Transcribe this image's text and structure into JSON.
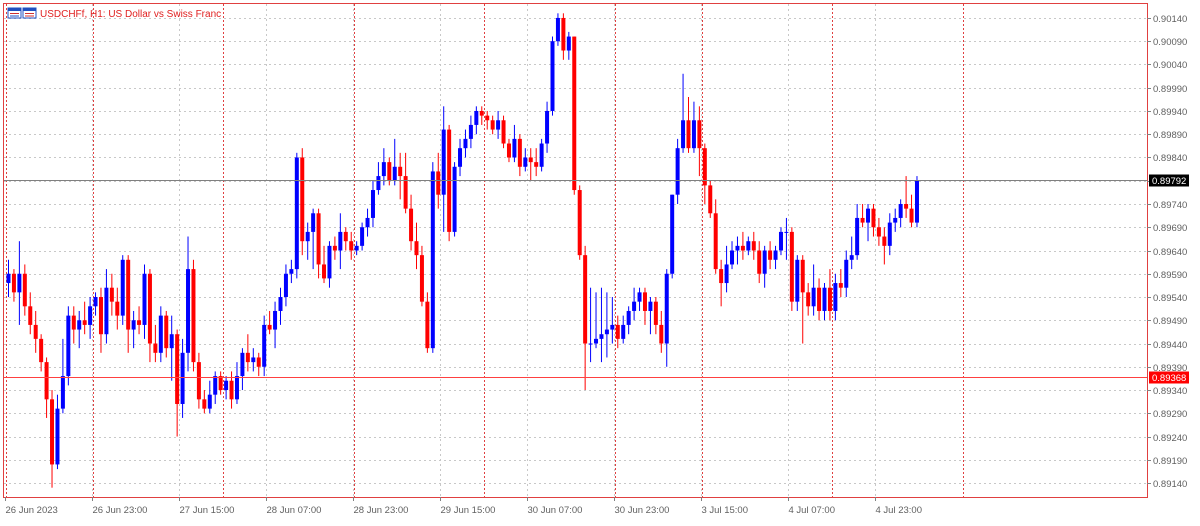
{
  "header": {
    "symbol": "USDCHFf",
    "timeframe": "H1",
    "description": "US Dollar vs Swiss Franc",
    "title": "USDCHFf, H1:  US Dollar vs Swiss Franc",
    "icon": "chart-window-icon"
  },
  "colors": {
    "bull": "#0000ff",
    "bear": "#ff0000",
    "background": "#ffffff",
    "grid": "#c8c8c8",
    "period_separator": "#e04040",
    "axis_text": "#606060",
    "frame": "#e04040",
    "bid_line": "#808080",
    "bid_label_bg": "#000000",
    "level_line": "#ff4040",
    "level_label_bg": "#ff0000"
  },
  "chart_data": {
    "type": "candlestick",
    "title": "USDCHFf, H1:  US Dollar vs Swiss Franc",
    "grid": true,
    "ylim": [
      0.8911,
      0.9017
    ],
    "yticks": [
      "0.90140",
      "0.90090",
      "0.90040",
      "0.89990",
      "0.89940",
      "0.89890",
      "0.89840",
      "0.89790",
      "0.89740",
      "0.89690",
      "0.89640",
      "0.89590",
      "0.89540",
      "0.89490",
      "0.89440",
      "0.89390",
      "0.89340",
      "0.89290",
      "0.89240",
      "0.89190",
      "0.89140"
    ],
    "xticks": [
      {
        "bar": 0,
        "label": "26 Jun 2023"
      },
      {
        "bar": 16,
        "label": "26 Jun 23:00"
      },
      {
        "bar": 32,
        "label": "27 Jun 15:00"
      },
      {
        "bar": 48,
        "label": "28 Jun 07:00"
      },
      {
        "bar": 64,
        "label": "28 Jun 23:00"
      },
      {
        "bar": 80,
        "label": "29 Jun 15:00"
      },
      {
        "bar": 96,
        "label": "30 Jun 07:00"
      },
      {
        "bar": 112,
        "label": "30 Jun 23:00"
      },
      {
        "bar": 128,
        "label": "3 Jul 15:00"
      },
      {
        "bar": 144,
        "label": "4 Jul 07:00"
      },
      {
        "bar": 160,
        "label": "4 Jul 23:00"
      }
    ],
    "separators": [
      0,
      16,
      40,
      64,
      88,
      112,
      128,
      152,
      176
    ],
    "bid": {
      "value": 0.89792,
      "label": "0.89792"
    },
    "level": {
      "value": 0.89368,
      "label": "0.89368"
    },
    "candles": [
      {
        "o": 0.8957,
        "h": 0.8962,
        "l": 0.8954,
        "c": 0.8959
      },
      {
        "o": 0.8959,
        "h": 0.896,
        "l": 0.8953,
        "c": 0.8955
      },
      {
        "o": 0.8955,
        "h": 0.8966,
        "l": 0.8948,
        "c": 0.8959
      },
      {
        "o": 0.8959,
        "h": 0.8961,
        "l": 0.895,
        "c": 0.8952
      },
      {
        "o": 0.8952,
        "h": 0.8955,
        "l": 0.8946,
        "c": 0.8948
      },
      {
        "o": 0.8948,
        "h": 0.8951,
        "l": 0.8942,
        "c": 0.8945
      },
      {
        "o": 0.8945,
        "h": 0.8946,
        "l": 0.8938,
        "c": 0.894
      },
      {
        "o": 0.894,
        "h": 0.8941,
        "l": 0.8928,
        "c": 0.8932
      },
      {
        "o": 0.8932,
        "h": 0.8934,
        "l": 0.8913,
        "c": 0.8918
      },
      {
        "o": 0.8918,
        "h": 0.8933,
        "l": 0.8917,
        "c": 0.893
      },
      {
        "o": 0.893,
        "h": 0.8945,
        "l": 0.8929,
        "c": 0.8937
      },
      {
        "o": 0.8937,
        "h": 0.8952,
        "l": 0.8935,
        "c": 0.895
      },
      {
        "o": 0.895,
        "h": 0.8952,
        "l": 0.8944,
        "c": 0.8947
      },
      {
        "o": 0.8947,
        "h": 0.8951,
        "l": 0.8943,
        "c": 0.8949
      },
      {
        "o": 0.8949,
        "h": 0.8953,
        "l": 0.8946,
        "c": 0.8948
      },
      {
        "o": 0.8948,
        "h": 0.8954,
        "l": 0.8945,
        "c": 0.8952
      },
      {
        "o": 0.8952,
        "h": 0.8955,
        "l": 0.895,
        "c": 0.8954
      },
      {
        "o": 0.8954,
        "h": 0.8956,
        "l": 0.8942,
        "c": 0.8946
      },
      {
        "o": 0.8946,
        "h": 0.896,
        "l": 0.8944,
        "c": 0.8956
      },
      {
        "o": 0.8956,
        "h": 0.8959,
        "l": 0.895,
        "c": 0.8953
      },
      {
        "o": 0.8953,
        "h": 0.8956,
        "l": 0.8947,
        "c": 0.895
      },
      {
        "o": 0.895,
        "h": 0.8963,
        "l": 0.8948,
        "c": 0.8962
      },
      {
        "o": 0.8962,
        "h": 0.8963,
        "l": 0.8942,
        "c": 0.8947
      },
      {
        "o": 0.8947,
        "h": 0.8951,
        "l": 0.8943,
        "c": 0.8949
      },
      {
        "o": 0.8949,
        "h": 0.8952,
        "l": 0.8946,
        "c": 0.8948
      },
      {
        "o": 0.8948,
        "h": 0.8961,
        "l": 0.8945,
        "c": 0.8959
      },
      {
        "o": 0.8959,
        "h": 0.896,
        "l": 0.894,
        "c": 0.8944
      },
      {
        "o": 0.8944,
        "h": 0.8948,
        "l": 0.894,
        "c": 0.8942
      },
      {
        "o": 0.8942,
        "h": 0.8952,
        "l": 0.894,
        "c": 0.895
      },
      {
        "o": 0.895,
        "h": 0.8951,
        "l": 0.8941,
        "c": 0.8943
      },
      {
        "o": 0.8943,
        "h": 0.895,
        "l": 0.8936,
        "c": 0.8946
      },
      {
        "o": 0.8946,
        "h": 0.8947,
        "l": 0.8924,
        "c": 0.8931
      },
      {
        "o": 0.8931,
        "h": 0.8945,
        "l": 0.8928,
        "c": 0.8942
      },
      {
        "o": 0.8942,
        "h": 0.8967,
        "l": 0.8938,
        "c": 0.896
      },
      {
        "o": 0.896,
        "h": 0.8962,
        "l": 0.8938,
        "c": 0.894
      },
      {
        "o": 0.894,
        "h": 0.8942,
        "l": 0.893,
        "c": 0.8932
      },
      {
        "o": 0.8932,
        "h": 0.8934,
        "l": 0.8929,
        "c": 0.893
      },
      {
        "o": 0.893,
        "h": 0.8936,
        "l": 0.8929,
        "c": 0.8933
      },
      {
        "o": 0.8933,
        "h": 0.8938,
        "l": 0.8931,
        "c": 0.8937
      },
      {
        "o": 0.8937,
        "h": 0.8938,
        "l": 0.8933,
        "c": 0.8934
      },
      {
        "o": 0.8934,
        "h": 0.8937,
        "l": 0.8932,
        "c": 0.8936
      },
      {
        "o": 0.8936,
        "h": 0.8938,
        "l": 0.893,
        "c": 0.8932
      },
      {
        "o": 0.8932,
        "h": 0.894,
        "l": 0.8931,
        "c": 0.8937
      },
      {
        "o": 0.8937,
        "h": 0.8943,
        "l": 0.8934,
        "c": 0.8942
      },
      {
        "o": 0.8942,
        "h": 0.8946,
        "l": 0.8938,
        "c": 0.894
      },
      {
        "o": 0.894,
        "h": 0.8943,
        "l": 0.8938,
        "c": 0.8941
      },
      {
        "o": 0.8941,
        "h": 0.8942,
        "l": 0.8937,
        "c": 0.8939
      },
      {
        "o": 0.8939,
        "h": 0.895,
        "l": 0.8937,
        "c": 0.8948
      },
      {
        "o": 0.8948,
        "h": 0.8951,
        "l": 0.8946,
        "c": 0.8947
      },
      {
        "o": 0.8947,
        "h": 0.8953,
        "l": 0.8943,
        "c": 0.8951
      },
      {
        "o": 0.8951,
        "h": 0.8956,
        "l": 0.8948,
        "c": 0.8954
      },
      {
        "o": 0.8954,
        "h": 0.8961,
        "l": 0.8952,
        "c": 0.8959
      },
      {
        "o": 0.8959,
        "h": 0.8962,
        "l": 0.8957,
        "c": 0.896
      },
      {
        "o": 0.896,
        "h": 0.8985,
        "l": 0.8958,
        "c": 0.8984
      },
      {
        "o": 0.8984,
        "h": 0.8986,
        "l": 0.8963,
        "c": 0.8966
      },
      {
        "o": 0.8966,
        "h": 0.897,
        "l": 0.8962,
        "c": 0.8968
      },
      {
        "o": 0.8968,
        "h": 0.8973,
        "l": 0.896,
        "c": 0.8972
      },
      {
        "o": 0.8972,
        "h": 0.8973,
        "l": 0.8958,
        "c": 0.8961
      },
      {
        "o": 0.8961,
        "h": 0.8965,
        "l": 0.8957,
        "c": 0.8958
      },
      {
        "o": 0.8958,
        "h": 0.8966,
        "l": 0.8956,
        "c": 0.8965
      },
      {
        "o": 0.8965,
        "h": 0.8967,
        "l": 0.8962,
        "c": 0.8964
      },
      {
        "o": 0.8964,
        "h": 0.8972,
        "l": 0.896,
        "c": 0.8968
      },
      {
        "o": 0.8968,
        "h": 0.8969,
        "l": 0.8964,
        "c": 0.8966
      },
      {
        "o": 0.8966,
        "h": 0.8968,
        "l": 0.8962,
        "c": 0.8964
      },
      {
        "o": 0.8964,
        "h": 0.8966,
        "l": 0.8963,
        "c": 0.8965
      },
      {
        "o": 0.8965,
        "h": 0.897,
        "l": 0.8964,
        "c": 0.8969
      },
      {
        "o": 0.8969,
        "h": 0.8973,
        "l": 0.8967,
        "c": 0.8971
      },
      {
        "o": 0.8971,
        "h": 0.8979,
        "l": 0.8969,
        "c": 0.8977
      },
      {
        "o": 0.8977,
        "h": 0.8983,
        "l": 0.8976,
        "c": 0.898
      },
      {
        "o": 0.898,
        "h": 0.8986,
        "l": 0.8978,
        "c": 0.8983
      },
      {
        "o": 0.8983,
        "h": 0.8984,
        "l": 0.8978,
        "c": 0.8979
      },
      {
        "o": 0.8979,
        "h": 0.8988,
        "l": 0.8978,
        "c": 0.8982
      },
      {
        "o": 0.8982,
        "h": 0.8985,
        "l": 0.8975,
        "c": 0.898
      },
      {
        "o": 0.898,
        "h": 0.8985,
        "l": 0.8972,
        "c": 0.8973
      },
      {
        "o": 0.8973,
        "h": 0.8976,
        "l": 0.8964,
        "c": 0.8966
      },
      {
        "o": 0.8966,
        "h": 0.897,
        "l": 0.896,
        "c": 0.8963
      },
      {
        "o": 0.8963,
        "h": 0.8965,
        "l": 0.8952,
        "c": 0.8953
      },
      {
        "o": 0.8953,
        "h": 0.8955,
        "l": 0.8942,
        "c": 0.8943
      },
      {
        "o": 0.8943,
        "h": 0.8983,
        "l": 0.8942,
        "c": 0.8981
      },
      {
        "o": 0.8981,
        "h": 0.8985,
        "l": 0.8973,
        "c": 0.8976
      },
      {
        "o": 0.8976,
        "h": 0.8995,
        "l": 0.8968,
        "c": 0.899
      },
      {
        "o": 0.899,
        "h": 0.8991,
        "l": 0.8966,
        "c": 0.8968
      },
      {
        "o": 0.8968,
        "h": 0.8983,
        "l": 0.8967,
        "c": 0.8982
      },
      {
        "o": 0.8982,
        "h": 0.8988,
        "l": 0.898,
        "c": 0.8986
      },
      {
        "o": 0.8986,
        "h": 0.899,
        "l": 0.8984,
        "c": 0.8988
      },
      {
        "o": 0.8988,
        "h": 0.8993,
        "l": 0.8986,
        "c": 0.8991
      },
      {
        "o": 0.8991,
        "h": 0.8995,
        "l": 0.8989,
        "c": 0.8994
      },
      {
        "o": 0.8994,
        "h": 0.8995,
        "l": 0.8991,
        "c": 0.8993
      },
      {
        "o": 0.8993,
        "h": 0.8994,
        "l": 0.899,
        "c": 0.8992
      },
      {
        "o": 0.8992,
        "h": 0.8993,
        "l": 0.8989,
        "c": 0.899
      },
      {
        "o": 0.899,
        "h": 0.8994,
        "l": 0.8988,
        "c": 0.8992
      },
      {
        "o": 0.8992,
        "h": 0.8993,
        "l": 0.8986,
        "c": 0.8987
      },
      {
        "o": 0.8987,
        "h": 0.8988,
        "l": 0.8983,
        "c": 0.8984
      },
      {
        "o": 0.8984,
        "h": 0.8991,
        "l": 0.8983,
        "c": 0.8988
      },
      {
        "o": 0.8988,
        "h": 0.8989,
        "l": 0.898,
        "c": 0.8982
      },
      {
        "o": 0.8982,
        "h": 0.8986,
        "l": 0.8981,
        "c": 0.8984
      },
      {
        "o": 0.8984,
        "h": 0.8986,
        "l": 0.8979,
        "c": 0.8983
      },
      {
        "o": 0.8983,
        "h": 0.8986,
        "l": 0.898,
        "c": 0.8982
      },
      {
        "o": 0.8982,
        "h": 0.8988,
        "l": 0.8981,
        "c": 0.8987
      },
      {
        "o": 0.8987,
        "h": 0.8996,
        "l": 0.8985,
        "c": 0.8994
      },
      {
        "o": 0.8994,
        "h": 0.901,
        "l": 0.8993,
        "c": 0.9009
      },
      {
        "o": 0.9009,
        "h": 0.9015,
        "l": 0.9008,
        "c": 0.9014
      },
      {
        "o": 0.9014,
        "h": 0.9015,
        "l": 0.9005,
        "c": 0.9007
      },
      {
        "o": 0.9007,
        "h": 0.9011,
        "l": 0.9005,
        "c": 0.901
      },
      {
        "o": 0.901,
        "h": 0.901,
        "l": 0.8976,
        "c": 0.8977
      },
      {
        "o": 0.8977,
        "h": 0.8978,
        "l": 0.8962,
        "c": 0.8963
      },
      {
        "o": 0.8963,
        "h": 0.8965,
        "l": 0.8934,
        "c": 0.8944
      },
      {
        "o": 0.8944,
        "h": 0.8956,
        "l": 0.894,
        "c": 0.8944
      },
      {
        "o": 0.8944,
        "h": 0.8955,
        "l": 0.8943,
        "c": 0.8945
      },
      {
        "o": 0.8945,
        "h": 0.8956,
        "l": 0.894,
        "c": 0.8946
      },
      {
        "o": 0.8946,
        "h": 0.8955,
        "l": 0.8941,
        "c": 0.8947
      },
      {
        "o": 0.8947,
        "h": 0.8954,
        "l": 0.8944,
        "c": 0.8948
      },
      {
        "o": 0.8948,
        "h": 0.895,
        "l": 0.8943,
        "c": 0.8945
      },
      {
        "o": 0.8945,
        "h": 0.895,
        "l": 0.8944,
        "c": 0.8948
      },
      {
        "o": 0.8948,
        "h": 0.8952,
        "l": 0.8946,
        "c": 0.8951
      },
      {
        "o": 0.8951,
        "h": 0.8956,
        "l": 0.8949,
        "c": 0.8953
      },
      {
        "o": 0.8953,
        "h": 0.8956,
        "l": 0.8951,
        "c": 0.8955
      },
      {
        "o": 0.8955,
        "h": 0.8956,
        "l": 0.8948,
        "c": 0.8951
      },
      {
        "o": 0.8951,
        "h": 0.8954,
        "l": 0.8946,
        "c": 0.8953
      },
      {
        "o": 0.8953,
        "h": 0.8954,
        "l": 0.8946,
        "c": 0.8948
      },
      {
        "o": 0.8948,
        "h": 0.8951,
        "l": 0.8942,
        "c": 0.8944
      },
      {
        "o": 0.8944,
        "h": 0.896,
        "l": 0.8939,
        "c": 0.8959
      },
      {
        "o": 0.8959,
        "h": 0.8976,
        "l": 0.8958,
        "c": 0.8976
      },
      {
        "o": 0.8976,
        "h": 0.8988,
        "l": 0.8974,
        "c": 0.8986
      },
      {
        "o": 0.8986,
        "h": 0.9002,
        "l": 0.8985,
        "c": 0.8992
      },
      {
        "o": 0.8992,
        "h": 0.8997,
        "l": 0.8985,
        "c": 0.8986
      },
      {
        "o": 0.8986,
        "h": 0.8996,
        "l": 0.8985,
        "c": 0.8992
      },
      {
        "o": 0.8992,
        "h": 0.8995,
        "l": 0.898,
        "c": 0.8986
      },
      {
        "o": 0.8986,
        "h": 0.8987,
        "l": 0.8974,
        "c": 0.8978
      },
      {
        "o": 0.8978,
        "h": 0.8979,
        "l": 0.8971,
        "c": 0.8972
      },
      {
        "o": 0.8972,
        "h": 0.8975,
        "l": 0.8959,
        "c": 0.896
      },
      {
        "o": 0.896,
        "h": 0.8962,
        "l": 0.8952,
        "c": 0.8957
      },
      {
        "o": 0.8957,
        "h": 0.8965,
        "l": 0.8955,
        "c": 0.8961
      },
      {
        "o": 0.8961,
        "h": 0.8966,
        "l": 0.896,
        "c": 0.8964
      },
      {
        "o": 0.8964,
        "h": 0.8967,
        "l": 0.8961,
        "c": 0.8965
      },
      {
        "o": 0.8965,
        "h": 0.8968,
        "l": 0.8962,
        "c": 0.8964
      },
      {
        "o": 0.8964,
        "h": 0.8967,
        "l": 0.8963,
        "c": 0.8966
      },
      {
        "o": 0.8966,
        "h": 0.8968,
        "l": 0.8962,
        "c": 0.8964
      },
      {
        "o": 0.8964,
        "h": 0.8966,
        "l": 0.8957,
        "c": 0.8959
      },
      {
        "o": 0.8959,
        "h": 0.8965,
        "l": 0.8956,
        "c": 0.8964
      },
      {
        "o": 0.8964,
        "h": 0.8966,
        "l": 0.896,
        "c": 0.8962
      },
      {
        "o": 0.8962,
        "h": 0.8965,
        "l": 0.896,
        "c": 0.8964
      },
      {
        "o": 0.8964,
        "h": 0.8969,
        "l": 0.8963,
        "c": 0.8968
      },
      {
        "o": 0.8968,
        "h": 0.8971,
        "l": 0.8962,
        "c": 0.8968
      },
      {
        "o": 0.8968,
        "h": 0.8969,
        "l": 0.8951,
        "c": 0.8953
      },
      {
        "o": 0.8953,
        "h": 0.8963,
        "l": 0.8951,
        "c": 0.8962
      },
      {
        "o": 0.8962,
        "h": 0.8963,
        "l": 0.8944,
        "c": 0.8955
      },
      {
        "o": 0.8955,
        "h": 0.8957,
        "l": 0.895,
        "c": 0.8952
      },
      {
        "o": 0.8952,
        "h": 0.8961,
        "l": 0.895,
        "c": 0.8956
      },
      {
        "o": 0.8956,
        "h": 0.8958,
        "l": 0.8949,
        "c": 0.8951
      },
      {
        "o": 0.8951,
        "h": 0.8957,
        "l": 0.8949,
        "c": 0.8956
      },
      {
        "o": 0.8956,
        "h": 0.896,
        "l": 0.8949,
        "c": 0.8951
      },
      {
        "o": 0.8951,
        "h": 0.8959,
        "l": 0.8949,
        "c": 0.8957
      },
      {
        "o": 0.8957,
        "h": 0.896,
        "l": 0.8954,
        "c": 0.8956
      },
      {
        "o": 0.8956,
        "h": 0.8964,
        "l": 0.8954,
        "c": 0.8962
      },
      {
        "o": 0.8962,
        "h": 0.8967,
        "l": 0.896,
        "c": 0.8963
      },
      {
        "o": 0.8963,
        "h": 0.8974,
        "l": 0.8962,
        "c": 0.8971
      },
      {
        "o": 0.8971,
        "h": 0.8974,
        "l": 0.8969,
        "c": 0.897
      },
      {
        "o": 0.897,
        "h": 0.8974,
        "l": 0.8966,
        "c": 0.8973
      },
      {
        "o": 0.8973,
        "h": 0.8974,
        "l": 0.8967,
        "c": 0.8969
      },
      {
        "o": 0.8969,
        "h": 0.8971,
        "l": 0.8965,
        "c": 0.8967
      },
      {
        "o": 0.8967,
        "h": 0.8969,
        "l": 0.8961,
        "c": 0.8965
      },
      {
        "o": 0.8965,
        "h": 0.8972,
        "l": 0.8963,
        "c": 0.897
      },
      {
        "o": 0.897,
        "h": 0.8973,
        "l": 0.8968,
        "c": 0.8971
      },
      {
        "o": 0.8971,
        "h": 0.8975,
        "l": 0.8969,
        "c": 0.8974
      },
      {
        "o": 0.8974,
        "h": 0.898,
        "l": 0.8971,
        "c": 0.8973
      },
      {
        "o": 0.8973,
        "h": 0.8976,
        "l": 0.8969,
        "c": 0.897
      },
      {
        "o": 0.897,
        "h": 0.898,
        "l": 0.8969,
        "c": 0.8979
      }
    ]
  }
}
